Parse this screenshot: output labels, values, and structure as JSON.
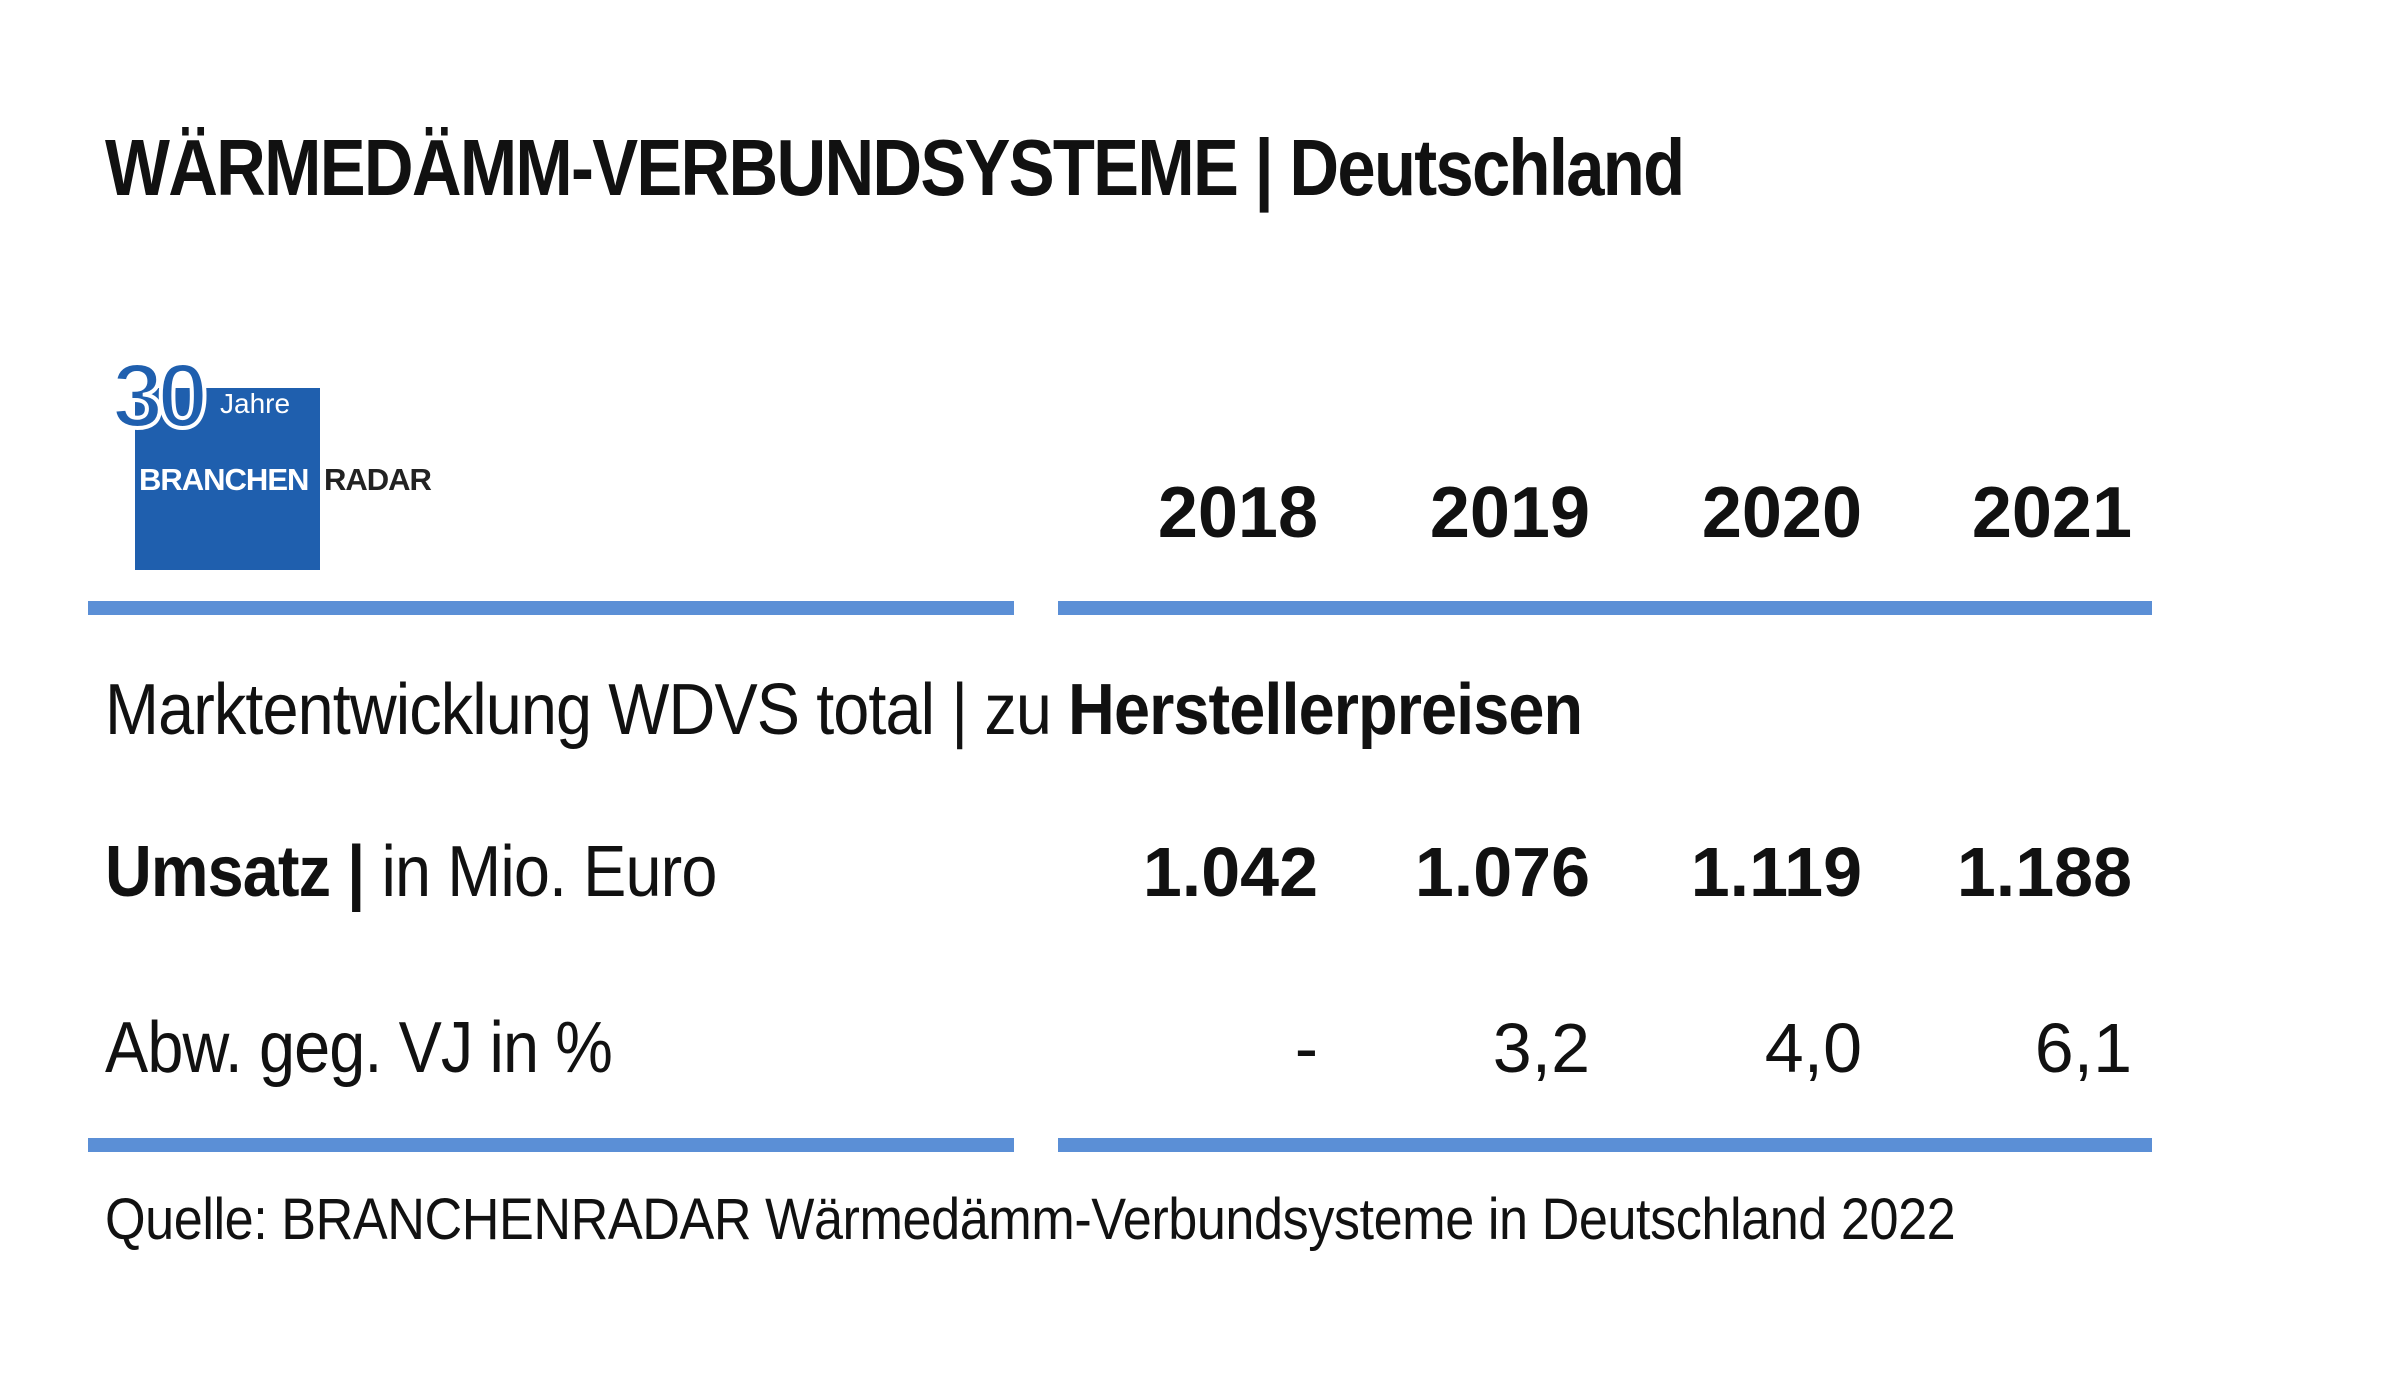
{
  "title": "WÄRMEDÄMM-VERBUNDSYSTEME | Deutschland",
  "logo": {
    "number": "30",
    "jahre": "Jahre",
    "branchen": "BRANCHEN",
    "radar": "RADAR",
    "brand_color": "#1f5fae"
  },
  "accent_color": "#5b8fd6",
  "years": [
    "2018",
    "2019",
    "2020",
    "2021"
  ],
  "section_heading": {
    "normal": "Marktentwicklung WDVS total | zu ",
    "bold": "Herstellerpreisen"
  },
  "rows": [
    {
      "label_bold": "Umsatz |",
      "label_normal": " in Mio. Euro",
      "values": [
        "1.042",
        "1.076",
        "1.119",
        "1.188"
      ]
    },
    {
      "label_bold": "",
      "label_normal": "Abw. geg. VJ in %",
      "values": [
        "-",
        "3,2",
        "4,0",
        "6,1"
      ]
    }
  ],
  "source": "Quelle: BRANCHENRADAR Wärmedämm-Verbundsysteme in Deutschland 2022"
}
